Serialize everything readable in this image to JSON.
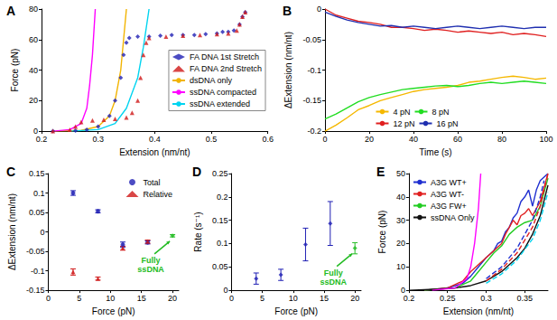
{
  "chart_data": [
    {
      "type": "scatter",
      "title": "A",
      "x_label": "Extension (nm/nt)",
      "y_label": "Force (pN)",
      "xlim": [
        0.2,
        0.6
      ],
      "xticks": [
        0.2,
        0.3,
        0.4,
        0.5,
        0.6
      ],
      "ylim": [
        0,
        80
      ],
      "yticks": [
        0,
        20,
        40,
        60,
        80
      ],
      "grid": false,
      "legend": "right",
      "series": [
        {
          "name": "FA DNA 1st Stretch",
          "type": "scatter",
          "marker": "diamond",
          "color": "#1f1fb4",
          "x": [
            0.22,
            0.26,
            0.28,
            0.3,
            0.32,
            0.33,
            0.34,
            0.345,
            0.35,
            0.355,
            0.37,
            0.39,
            0.41,
            0.43,
            0.45,
            0.47,
            0.49,
            0.51,
            0.52,
            0.53,
            0.54,
            0.55,
            0.555,
            0.56
          ],
          "values": [
            0,
            0.3,
            1,
            3,
            10,
            20,
            35,
            50,
            58,
            61,
            62,
            62,
            62.5,
            63,
            63,
            63,
            63.5,
            64,
            65,
            65,
            66,
            70,
            75,
            78
          ]
        },
        {
          "name": "FA DNA 2nd Stretch",
          "type": "scatter",
          "marker": "triangle",
          "color": "#d01818",
          "x": [
            0.22,
            0.25,
            0.26,
            0.27,
            0.29,
            0.31,
            0.33,
            0.35,
            0.36,
            0.37,
            0.375,
            0.38,
            0.385,
            0.39,
            0.42,
            0.45,
            0.48,
            0.51,
            0.53,
            0.545,
            0.55,
            0.555,
            0.56
          ],
          "values": [
            0,
            1,
            3,
            6,
            7,
            7.5,
            8,
            9,
            12,
            20,
            35,
            50,
            58,
            61,
            62,
            62.5,
            63,
            63.5,
            64,
            66,
            70,
            75,
            78
          ]
        },
        {
          "name": "dsDNA only",
          "type": "line",
          "line_style": "solid",
          "color": "#f2b400",
          "x": [
            0.22,
            0.27,
            0.3,
            0.32,
            0.33,
            0.34,
            0.345,
            0.35
          ],
          "values": [
            0,
            0.5,
            3,
            10,
            20,
            40,
            60,
            80
          ]
        },
        {
          "name": "ssDNA compacted",
          "type": "line",
          "line_style": "solid",
          "color": "#ff00ff",
          "x": [
            0.22,
            0.25,
            0.27,
            0.28,
            0.285,
            0.29,
            0.295
          ],
          "values": [
            0,
            1,
            5,
            15,
            30,
            50,
            80
          ]
        },
        {
          "name": "ssDNA extended",
          "type": "line",
          "line_style": "solid",
          "color": "#00d4f0",
          "x": [
            0.25,
            0.3,
            0.33,
            0.35,
            0.37,
            0.38,
            0.39
          ],
          "values": [
            0,
            1,
            5,
            15,
            35,
            55,
            80
          ]
        }
      ]
    },
    {
      "type": "line",
      "title": "B",
      "x_label": "Time (s)",
      "y_label": "ΔExtension (nm/nt)",
      "xlim": [
        0,
        100
      ],
      "xticks": [
        0,
        20,
        40,
        60,
        80,
        100
      ],
      "ylim": [
        -0.2,
        0
      ],
      "yticks": [
        -0.2,
        -0.15,
        -0.1,
        -0.05,
        0
      ],
      "grid": false,
      "legend": "bottom",
      "x": [
        0,
        5,
        10,
        15,
        20,
        25,
        30,
        35,
        40,
        45,
        50,
        55,
        60,
        65,
        70,
        75,
        80,
        85,
        90,
        95,
        100
      ],
      "series": [
        {
          "name": "4 pN",
          "color": "#f5b800",
          "line_style": "solid",
          "values": [
            -0.2,
            -0.19,
            -0.178,
            -0.165,
            -0.158,
            -0.15,
            -0.145,
            -0.14,
            -0.135,
            -0.132,
            -0.13,
            -0.128,
            -0.125,
            -0.12,
            -0.118,
            -0.115,
            -0.112,
            -0.11,
            -0.112,
            -0.115,
            -0.113
          ]
        },
        {
          "name": "8 pN",
          "color": "#22dd22",
          "line_style": "solid",
          "values": [
            -0.18,
            -0.172,
            -0.162,
            -0.152,
            -0.145,
            -0.14,
            -0.136,
            -0.132,
            -0.13,
            -0.128,
            -0.126,
            -0.125,
            -0.127,
            -0.125,
            -0.122,
            -0.12,
            -0.122,
            -0.12,
            -0.118,
            -0.12,
            -0.122
          ]
        },
        {
          "name": "12 pN",
          "color": "#e02020",
          "line_style": "solid",
          "values": [
            0,
            -0.01,
            -0.015,
            -0.02,
            -0.022,
            -0.025,
            -0.03,
            -0.03,
            -0.032,
            -0.035,
            -0.033,
            -0.035,
            -0.038,
            -0.036,
            -0.038,
            -0.04,
            -0.038,
            -0.042,
            -0.04,
            -0.042,
            -0.045
          ]
        },
        {
          "name": "16 pN",
          "color": "#1f2fb0",
          "line_style": "solid",
          "values": [
            -0.005,
            -0.012,
            -0.018,
            -0.022,
            -0.025,
            -0.028,
            -0.027,
            -0.03,
            -0.028,
            -0.03,
            -0.032,
            -0.03,
            -0.028,
            -0.03,
            -0.032,
            -0.03,
            -0.028,
            -0.03,
            -0.032,
            -0.03,
            -0.03
          ]
        }
      ]
    },
    {
      "type": "scatter",
      "title": "C",
      "x_label": "Force (pN)",
      "y_label": "ΔExtension (nm/nt)",
      "xlim": [
        0,
        21
      ],
      "xticks": [
        0,
        5,
        10,
        15,
        20
      ],
      "ylim": [
        -0.15,
        0.15
      ],
      "yticks": [
        -0.15,
        -0.1,
        -0.05,
        0,
        0.05,
        0.1,
        0.15
      ],
      "grid": false,
      "legend": "top-right",
      "series": [
        {
          "name": "Total",
          "marker": "circle",
          "color": "#1f1fb4",
          "x": [
            4,
            8,
            12,
            16
          ],
          "values": [
            0.1,
            0.053,
            -0.033,
            -0.027
          ],
          "errors": [
            0.006,
            0.004,
            0.007,
            0.004
          ]
        },
        {
          "name": "Relative",
          "marker": "triangle",
          "color": "#d01818",
          "x": [
            4,
            8,
            12,
            16
          ],
          "values": [
            -0.103,
            -0.12,
            -0.042,
            -0.025
          ],
          "errors": [
            0.008,
            0.004,
            0.005,
            0.004
          ]
        }
      ],
      "annotations": [
        {
          "text": "Fully ssDNA",
          "color": "#22bb22",
          "marker": "diamond",
          "x": 20,
          "y": -0.01,
          "error": 0.003
        }
      ]
    },
    {
      "type": "scatter",
      "title": "D",
      "x_label": "Force (pN)",
      "y_label": "Rate (s⁻¹)",
      "xlim": [
        0,
        21
      ],
      "xticks": [
        0,
        5,
        10,
        15,
        20
      ],
      "ylim": [
        0,
        0.25
      ],
      "yticks": [
        0,
        0.05,
        0.1,
        0.15,
        0.2,
        0.25
      ],
      "grid": false,
      "series": [
        {
          "marker": "diamond",
          "color": "#1f1fb4",
          "x": [
            4,
            8,
            12,
            16
          ],
          "values": [
            0.025,
            0.033,
            0.098,
            0.143
          ],
          "errors": [
            0.012,
            0.012,
            0.035,
            0.047
          ]
        }
      ],
      "annotations": [
        {
          "text": "Fully ssDNA",
          "color": "#22bb22",
          "marker": "diamond",
          "x": 20,
          "y": 0.09,
          "error": 0.012
        }
      ]
    },
    {
      "type": "line",
      "title": "E",
      "x_label": "Extension (nm/nt)",
      "y_label": "Force (pN)",
      "xlim": [
        0.2,
        0.38
      ],
      "xticks": [
        0.2,
        0.25,
        0.3,
        0.35
      ],
      "ylim": [
        0,
        50
      ],
      "yticks": [
        0,
        10,
        20,
        30,
        40,
        50
      ],
      "grid": false,
      "legend": "top-left",
      "series": [
        {
          "name": "A3G WT+",
          "color": "#1f2fd0",
          "line_style": "solid",
          "x": [
            0.22,
            0.25,
            0.27,
            0.28,
            0.29,
            0.3,
            0.31,
            0.315,
            0.32,
            0.325,
            0.33,
            0.335,
            0.34,
            0.345,
            0.35,
            0.355,
            0.36,
            0.365,
            0.37,
            0.38
          ],
          "values": [
            0,
            1,
            3,
            6,
            10,
            14,
            17,
            20,
            21,
            25,
            27,
            31,
            33,
            38,
            40,
            43,
            36,
            43,
            47,
            50
          ]
        },
        {
          "name": "A3G WT-",
          "color": "#e02020",
          "line_style": "solid",
          "x": [
            0.22,
            0.25,
            0.27,
            0.28,
            0.29,
            0.3,
            0.31,
            0.32,
            0.325,
            0.33,
            0.335,
            0.34,
            0.345,
            0.35,
            0.355,
            0.36,
            0.37,
            0.38
          ],
          "values": [
            0,
            1,
            4,
            8,
            11,
            14,
            17,
            20,
            24,
            27,
            30,
            28,
            32,
            33,
            35,
            32,
            38,
            50
          ]
        },
        {
          "name": "A3G FW+",
          "color": "#22cc22",
          "line_style": "solid",
          "x": [
            0.22,
            0.26,
            0.28,
            0.29,
            0.3,
            0.31,
            0.32,
            0.33,
            0.34,
            0.35,
            0.36,
            0.37,
            0.38
          ],
          "values": [
            0,
            1,
            4,
            8,
            12,
            16,
            19,
            24,
            27,
            29,
            30,
            36,
            48
          ]
        },
        {
          "name": "ssDNA Only",
          "color": "#111111",
          "line_style": "solid",
          "x": [
            0.2,
            0.24,
            0.26,
            0.28,
            0.3,
            0.31,
            0.32,
            0.33,
            0.34,
            0.35,
            0.36,
            0.37,
            0.38
          ],
          "values": [
            0,
            0.5,
            1,
            2,
            4,
            6,
            8,
            11,
            14,
            18,
            24,
            32,
            45
          ]
        },
        {
          "color": "#1f2fd0",
          "line_style": "dashed",
          "x": [
            0.3,
            0.32,
            0.34,
            0.36,
            0.37,
            0.375
          ],
          "values": [
            5,
            10,
            18,
            30,
            40,
            47
          ]
        },
        {
          "color": "#e02020",
          "line_style": "dashed",
          "x": [
            0.3,
            0.32,
            0.34,
            0.36,
            0.37,
            0.38
          ],
          "values": [
            4,
            9,
            16,
            27,
            36,
            50
          ]
        },
        {
          "color": "#00d4f0",
          "line_style": "dashed",
          "x": [
            0.3,
            0.32,
            0.34,
            0.36,
            0.37,
            0.38
          ],
          "values": [
            3,
            7,
            13,
            22,
            30,
            42
          ]
        },
        {
          "color": "#ff00ff",
          "line_style": "solid",
          "x": [
            0.23,
            0.26,
            0.275,
            0.28,
            0.285,
            0.29,
            0.293
          ],
          "values": [
            0,
            1,
            5,
            10,
            20,
            35,
            50
          ]
        }
      ]
    }
  ]
}
